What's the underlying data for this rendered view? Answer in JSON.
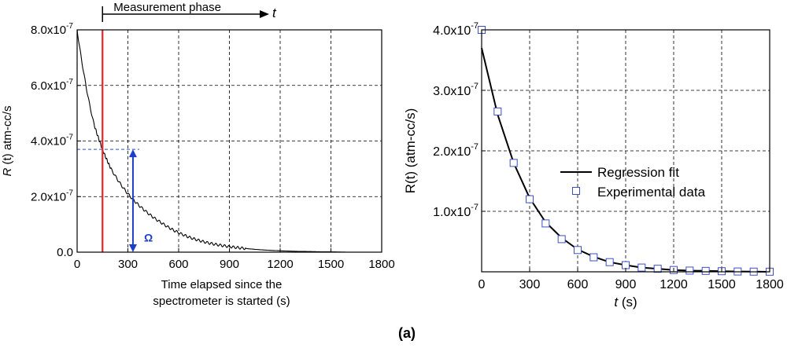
{
  "caption": "(a)",
  "chart_data": [
    {
      "type": "line",
      "xlabel_line1": "Time elapsed since the",
      "xlabel_line2": "spectrometer is started (s)",
      "ylabel_italic": "R",
      "ylabel_rest": " (t) atm-cc/s",
      "xlim": [
        0,
        1800
      ],
      "ylim": [
        0,
        8e-07
      ],
      "grid": true,
      "x_ticks": [
        "0",
        "300",
        "600",
        "900",
        "1200",
        "1500",
        "1800"
      ],
      "y_ticks": [
        {
          "mant": "0.0",
          "exp": ""
        },
        {
          "mant": "2.0x10",
          "exp": "-7"
        },
        {
          "mant": "4.0x10",
          "exp": "-7"
        },
        {
          "mant": "6.0x10",
          "exp": "-7"
        },
        {
          "mant": "8.0x10",
          "exp": "-7"
        }
      ],
      "series": [
        {
          "color": "#000000",
          "model": "exponential decay",
          "x": [
            0,
            100,
            150,
            200,
            300,
            400,
            500,
            600,
            700,
            800,
            900,
            1000,
            1100,
            1200,
            1300,
            1400,
            1500,
            1600,
            1700,
            1800
          ],
          "y": [
            8e-07,
            4.6e-07,
            3.7e-07,
            3e-07,
            2.1e-07,
            1.5e-07,
            1.05e-07,
            7e-08,
            4.6e-08,
            3e-08,
            2e-08,
            1.3e-08,
            8e-09,
            5e-09,
            3e-09,
            2e-09,
            1e-09,
            0,
            0,
            0
          ]
        }
      ],
      "annotations": {
        "measurement_start_x": 150,
        "measurement_line_color": "#e8262a",
        "measurement_label": "Measurement phase",
        "t_label": "t",
        "level_y": 3.7e-07,
        "level_line_color": "#2a52c9",
        "omega_x": 330,
        "omega_label": "Ω",
        "omega_color": "#1c3fc8"
      }
    },
    {
      "type": "scatter",
      "xlabel_italic": "t",
      "xlabel_rest": " (s)",
      "ylabel": "R(t) (atm-cc/s)",
      "xlim": [
        0,
        1800
      ],
      "ylim": [
        0,
        4e-07
      ],
      "grid": true,
      "legend_position": "center-right",
      "x_ticks": [
        "0",
        "300",
        "600",
        "900",
        "1200",
        "1500",
        "1800"
      ],
      "y_ticks": [
        {
          "mant": "1.0x10",
          "exp": "-7"
        },
        {
          "mant": "2.0x10",
          "exp": "-7"
        },
        {
          "mant": "3.0x10",
          "exp": "-7"
        },
        {
          "mant": "4.0x10",
          "exp": "-7"
        }
      ],
      "series": [
        {
          "name": "Regression fit",
          "kind": "line",
          "color": "#000000",
          "x": [
            0,
            100,
            200,
            300,
            400,
            500,
            600,
            700,
            800,
            900,
            1000,
            1100,
            1200,
            1300,
            1400,
            1500,
            1600,
            1700,
            1800
          ],
          "y": [
            3.7e-07,
            2.6e-07,
            1.8e-07,
            1.22e-07,
            8.2e-08,
            5.6e-08,
            3.7e-08,
            2.5e-08,
            1.6e-08,
            1.1e-08,
            7e-09,
            5e-09,
            3e-09,
            2e-09,
            1.5e-09,
            1e-09,
            5e-10,
            3e-10,
            0
          ]
        },
        {
          "name": "Experimental data",
          "kind": "marker",
          "color": "#3e4fc4",
          "x": [
            0,
            100,
            200,
            300,
            400,
            500,
            600,
            700,
            800,
            900,
            1000,
            1100,
            1200,
            1300,
            1400,
            1500,
            1600,
            1700,
            1800
          ],
          "y": [
            4e-07,
            2.65e-07,
            1.8e-07,
            1.2e-07,
            8e-08,
            5.4e-08,
            3.6e-08,
            2.4e-08,
            1.6e-08,
            1.1e-08,
            7e-09,
            5e-09,
            3e-09,
            2e-09,
            1.5e-09,
            1e-09,
            5e-10,
            3e-10,
            2e-10
          ]
        }
      ]
    }
  ]
}
